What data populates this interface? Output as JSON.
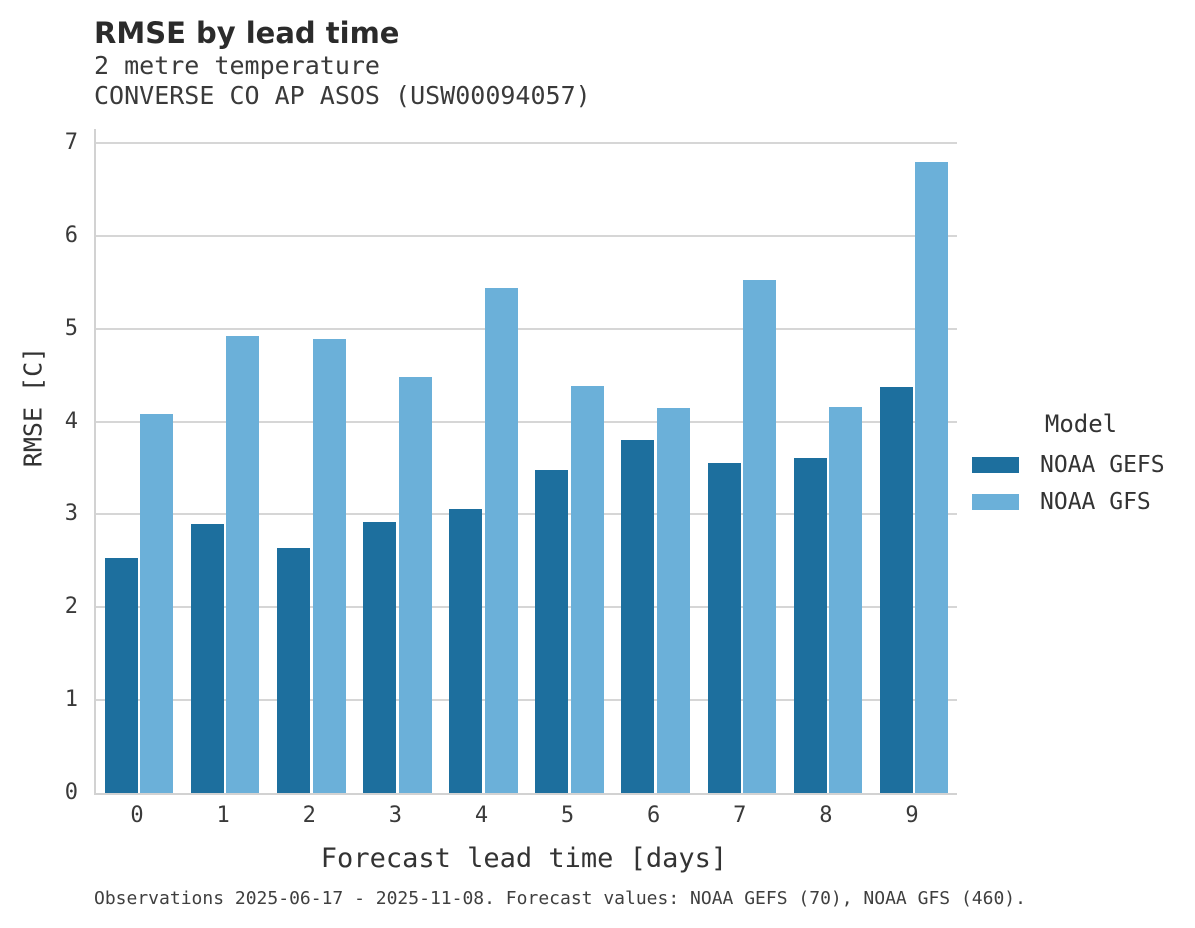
{
  "header": {
    "title": "RMSE by lead time",
    "subtitle1": "2 metre temperature",
    "subtitle2": "CONVERSE CO AP ASOS (USW00094057)"
  },
  "chart_data": {
    "type": "bar",
    "title": "RMSE by lead time",
    "subtitle": [
      "2 metre temperature",
      "CONVERSE CO AP ASOS (USW00094057)"
    ],
    "categories": [
      "0",
      "1",
      "2",
      "3",
      "4",
      "5",
      "6",
      "7",
      "8",
      "9"
    ],
    "series": [
      {
        "name": "NOAA GEFS",
        "color": "#1d6f9e",
        "values": [
          2.53,
          2.9,
          2.64,
          2.92,
          3.06,
          3.48,
          3.8,
          3.55,
          3.61,
          4.37
        ]
      },
      {
        "name": "NOAA GFS",
        "color": "#6bb0d9",
        "values": [
          4.08,
          4.92,
          4.89,
          4.48,
          5.44,
          4.38,
          4.15,
          5.52,
          4.16,
          6.79
        ]
      }
    ],
    "xlabel": "Forecast lead time [days]",
    "ylabel": "RMSE [C]",
    "ylim": [
      0,
      7.15
    ],
    "yticks": [
      0,
      1,
      2,
      3,
      4,
      5,
      6,
      7
    ],
    "grid": true,
    "legend_title": "Model",
    "legend_position": "right",
    "grid_color": "#d6d6d6"
  },
  "footer": {
    "caption": "Observations 2025-06-17 - 2025-11-08. Forecast values: NOAA GEFS (70), NOAA GFS (460)."
  }
}
